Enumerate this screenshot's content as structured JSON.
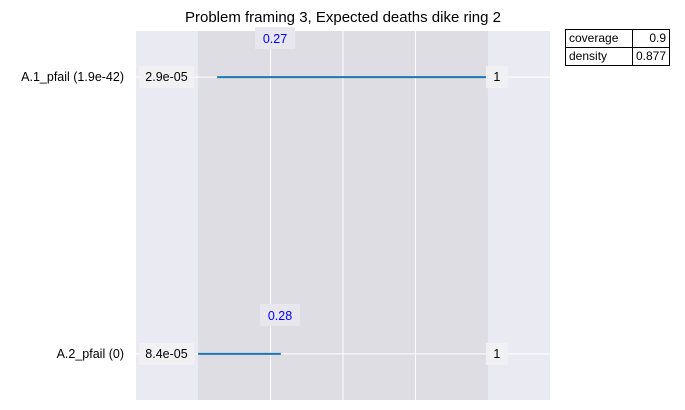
{
  "chart_data": {
    "type": "box-ranges",
    "title": "Problem framing 3, Expected deaths dike ring 2",
    "box_x_range": [
      0.15,
      0.85
    ],
    "xlim": [
      0,
      1
    ],
    "grid": true,
    "rows": [
      {
        "label": "A.1_pfail (1.9e-42)",
        "lower_value": 0.196,
        "upper_value": 0.85,
        "lower_label": "2.9e-05",
        "upper_label": "1",
        "quantile_label": "0.27"
      },
      {
        "label": "A.2_pfail (0)",
        "lower_value": 0.15,
        "upper_value": 0.35,
        "lower_label": "8.4e-05",
        "upper_label": "1",
        "quantile_label": "0.28"
      }
    ],
    "stats": [
      {
        "name": "coverage",
        "value": "0.9"
      },
      {
        "name": "density",
        "value": "0.877"
      }
    ],
    "line_color": "#1f77b4",
    "quantile_color": "#0000ff"
  }
}
